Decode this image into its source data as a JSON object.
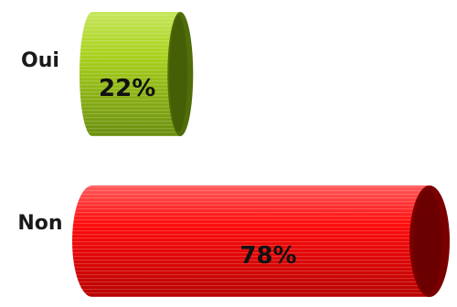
{
  "chart_data": {
    "type": "bar",
    "orientation": "horizontal",
    "style": "3d-cylinder",
    "title": "",
    "xlabel": "",
    "ylabel": "",
    "categories": [
      "Oui",
      "Non"
    ],
    "values": [
      22,
      78
    ],
    "value_labels": [
      "22%",
      "78%"
    ],
    "xlim": [
      0,
      78
    ],
    "grid": false,
    "legend": "none",
    "colors": [
      {
        "front": "#a9d11c",
        "light": "#c6e65a",
        "dark": "#6a8f0e",
        "end": "#4f6d08"
      },
      {
        "front": "#ff0a0a",
        "light": "#ff5a5a",
        "dark": "#b80000",
        "end": "#7a0000"
      }
    ]
  }
}
